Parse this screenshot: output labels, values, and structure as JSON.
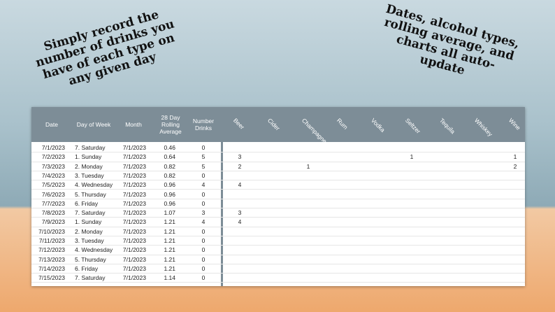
{
  "captions": {
    "left": "Simply record the number of drinks you have of each type on any given day",
    "right": "Dates, alcohol types, rolling average, and charts all auto-update"
  },
  "table": {
    "headers": {
      "date": "Date",
      "day": "Day of Week",
      "month": "Month",
      "avg": "28 Day Rolling Average",
      "num": "Number Drinks"
    },
    "beverages": [
      "Beer",
      "Cider",
      "Champagne",
      "Rum",
      "Vodka",
      "Seltzer",
      "Tequila",
      "Whiskey",
      "Wine"
    ],
    "rows": [
      {
        "date": "7/1/2023",
        "day": "7. Saturday",
        "month": "7/1/2023",
        "avg": "0.46",
        "num": "0",
        "drinks": [
          "",
          "",
          "",
          "",
          "",
          "",
          "",
          "",
          ""
        ]
      },
      {
        "date": "7/2/2023",
        "day": "1. Sunday",
        "month": "7/1/2023",
        "avg": "0.64",
        "num": "5",
        "drinks": [
          "3",
          "",
          "",
          "",
          "",
          "1",
          "",
          "",
          "1"
        ]
      },
      {
        "date": "7/3/2023",
        "day": "2. Monday",
        "month": "7/1/2023",
        "avg": "0.82",
        "num": "5",
        "drinks": [
          "2",
          "",
          "1",
          "",
          "",
          "",
          "",
          "",
          "2"
        ]
      },
      {
        "date": "7/4/2023",
        "day": "3. Tuesday",
        "month": "7/1/2023",
        "avg": "0.82",
        "num": "0",
        "drinks": [
          "",
          "",
          "",
          "",
          "",
          "",
          "",
          "",
          ""
        ]
      },
      {
        "date": "7/5/2023",
        "day": "4. Wednesday",
        "month": "7/1/2023",
        "avg": "0.96",
        "num": "4",
        "drinks": [
          "4",
          "",
          "",
          "",
          "",
          "",
          "",
          "",
          ""
        ]
      },
      {
        "date": "7/6/2023",
        "day": "5. Thursday",
        "month": "7/1/2023",
        "avg": "0.96",
        "num": "0",
        "drinks": [
          "",
          "",
          "",
          "",
          "",
          "",
          "",
          "",
          ""
        ]
      },
      {
        "date": "7/7/2023",
        "day": "6. Friday",
        "month": "7/1/2023",
        "avg": "0.96",
        "num": "0",
        "drinks": [
          "",
          "",
          "",
          "",
          "",
          "",
          "",
          "",
          ""
        ]
      },
      {
        "date": "7/8/2023",
        "day": "7. Saturday",
        "month": "7/1/2023",
        "avg": "1.07",
        "num": "3",
        "drinks": [
          "3",
          "",
          "",
          "",
          "",
          "",
          "",
          "",
          ""
        ]
      },
      {
        "date": "7/9/2023",
        "day": "1. Sunday",
        "month": "7/1/2023",
        "avg": "1.21",
        "num": "4",
        "drinks": [
          "4",
          "",
          "",
          "",
          "",
          "",
          "",
          "",
          ""
        ]
      },
      {
        "date": "7/10/2023",
        "day": "2. Monday",
        "month": "7/1/2023",
        "avg": "1.21",
        "num": "0",
        "drinks": [
          "",
          "",
          "",
          "",
          "",
          "",
          "",
          "",
          ""
        ]
      },
      {
        "date": "7/11/2023",
        "day": "3. Tuesday",
        "month": "7/1/2023",
        "avg": "1.21",
        "num": "0",
        "drinks": [
          "",
          "",
          "",
          "",
          "",
          "",
          "",
          "",
          ""
        ]
      },
      {
        "date": "7/12/2023",
        "day": "4. Wednesday",
        "month": "7/1/2023",
        "avg": "1.21",
        "num": "0",
        "drinks": [
          "",
          "",
          "",
          "",
          "",
          "",
          "",
          "",
          ""
        ]
      },
      {
        "date": "7/13/2023",
        "day": "5. Thursday",
        "month": "7/1/2023",
        "avg": "1.21",
        "num": "0",
        "drinks": [
          "",
          "",
          "",
          "",
          "",
          "",
          "",
          "",
          ""
        ]
      },
      {
        "date": "7/14/2023",
        "day": "6. Friday",
        "month": "7/1/2023",
        "avg": "1.21",
        "num": "0",
        "drinks": [
          "",
          "",
          "",
          "",
          "",
          "",
          "",
          "",
          ""
        ]
      },
      {
        "date": "7/15/2023",
        "day": "7. Saturday",
        "month": "7/1/2023",
        "avg": "1.14",
        "num": "0",
        "drinks": [
          "",
          "",
          "",
          "",
          "",
          "",
          "",
          "",
          ""
        ]
      }
    ]
  },
  "colors": {
    "header_bg": "#7d8d97",
    "header_text": "#ffffff"
  }
}
